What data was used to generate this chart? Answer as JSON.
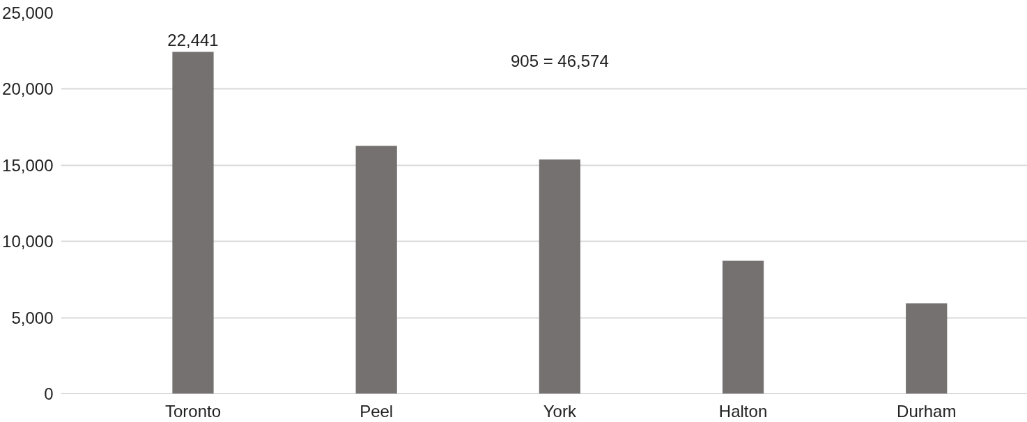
{
  "chart_data": {
    "type": "bar",
    "categories": [
      "Toronto",
      "Peel",
      "York",
      "Halton",
      "Durham"
    ],
    "values": [
      22441,
      16270,
      15380,
      8730,
      5940
    ],
    "value_labels": [
      "22,441",
      null,
      null,
      null,
      null
    ],
    "color": "#767171",
    "ylim": [
      0,
      25000
    ],
    "yticks": [
      {
        "value": 0,
        "label": "0"
      },
      {
        "value": 5000,
        "label": "5,000"
      },
      {
        "value": 10000,
        "label": "10,000"
      },
      {
        "value": 15000,
        "label": "15,000"
      },
      {
        "value": 20000,
        "label": "20,000"
      },
      {
        "value": 25000,
        "label": "25,000"
      }
    ],
    "grid": "y",
    "annotations": [
      "905 = 46,574"
    ]
  }
}
